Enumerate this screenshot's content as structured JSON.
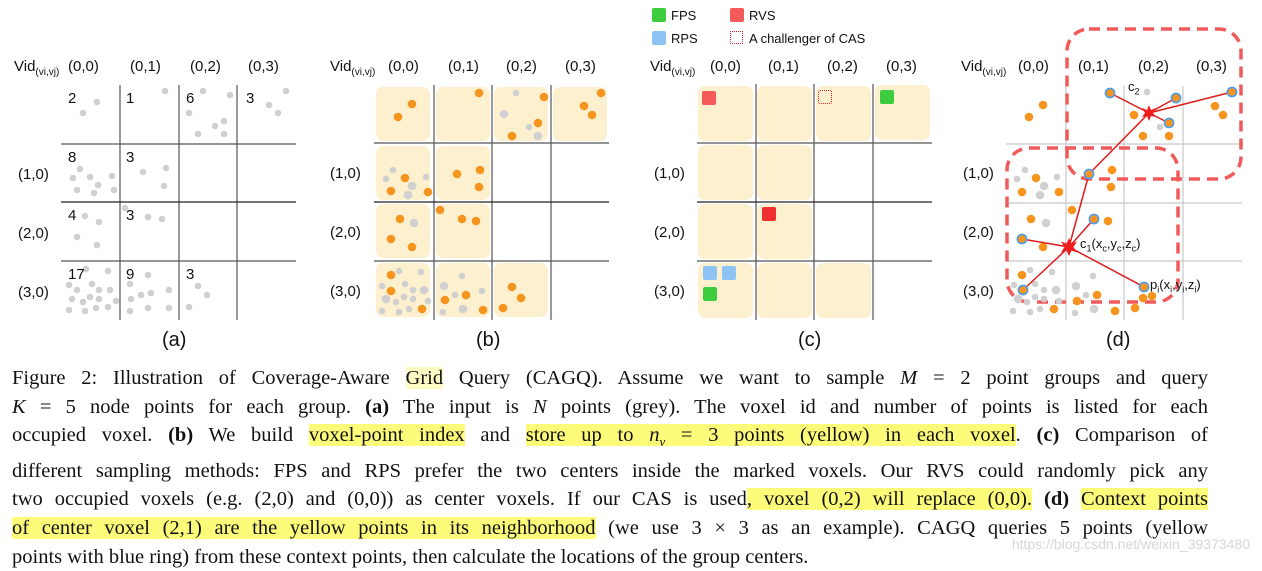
{
  "figure": {
    "panels": [
      {
        "id": "a",
        "label": "(a)"
      },
      {
        "id": "b",
        "label": "(b)"
      },
      {
        "id": "c",
        "label": "(c)"
      },
      {
        "id": "d",
        "label": "(d)"
      }
    ],
    "grid": {
      "corner_label": "Vid",
      "corner_subscript": "(vi,vj)",
      "col_headers": [
        "(0,0)",
        "(0,1)",
        "(0,2)",
        "(0,3)"
      ],
      "row_headers": [
        "(1,0)",
        "(2,0)",
        "(3,0)"
      ]
    },
    "panel_a_counts": [
      [
        "2",
        "1",
        "6",
        "3"
      ],
      [
        "8",
        "3",
        "",
        ""
      ],
      [
        "4",
        "3",
        "",
        ""
      ],
      [
        "17",
        "9",
        "3",
        ""
      ]
    ],
    "legend": {
      "fps": "FPS",
      "rvs": "RVS",
      "rps": "RPS",
      "cas": "A challenger of CAS"
    },
    "panel_d": {
      "c1_label": "c1(xc,yc,zc)",
      "c2_label": "c2",
      "pi_label": "pi(xi,yi,zi)"
    },
    "colors": {
      "grey_point": "#d0d0d0",
      "yellow_point": "#f7941d",
      "voxel_fill": "#fdf0cf",
      "fps": "#3dcc3d",
      "rvs": "#f45a5a",
      "rvs_strong": "#ef2f2f",
      "rps": "#8ec3f5",
      "context_box": "#f05a5a",
      "query_line": "#e01b1b",
      "highlight": "#fdfb7a"
    }
  },
  "caption": {
    "lines": [
      [
        "Figure 2: Illustration of Coverage-Aware ",
        "Grid",
        " Query (CAGQ). Assume we want to sample ",
        "M",
        " = 2 point groups and query"
      ],
      [
        "K",
        " = 5 node points for each group. ",
        "(a)",
        " The input is ",
        "N",
        " points (grey). The voxel id and number of points is listed for each"
      ],
      [
        "occupied voxel. ",
        "(b)",
        " We build ",
        "voxel-point index",
        " and ",
        "store up to ",
        "n",
        "v",
        " = 3 points (yellow) in each voxel",
        ". ",
        "(c)",
        " Comparison of"
      ],
      [
        "different sampling methods: FPS and RPS prefer the two centers inside the marked voxels. Our RVS could randomly pick any"
      ],
      [
        "two occupied voxels (e.g. (2,0) and (0,0)) as center voxels. If our CAS is used",
        ", voxel (0,2) will replace (0,0).",
        " ",
        "(d)",
        " ",
        "Context points"
      ],
      [
        "of center voxel (2,1) are the yellow points in its neighborhood",
        " (we use 3 × 3 as an example). CAGQ queries 5 points (yellow"
      ],
      [
        "points with blue ring) from these context points, then calculate the locations of the group centers."
      ]
    ]
  },
  "watermark": "https://blog.csdn.net/weixin_39373480"
}
